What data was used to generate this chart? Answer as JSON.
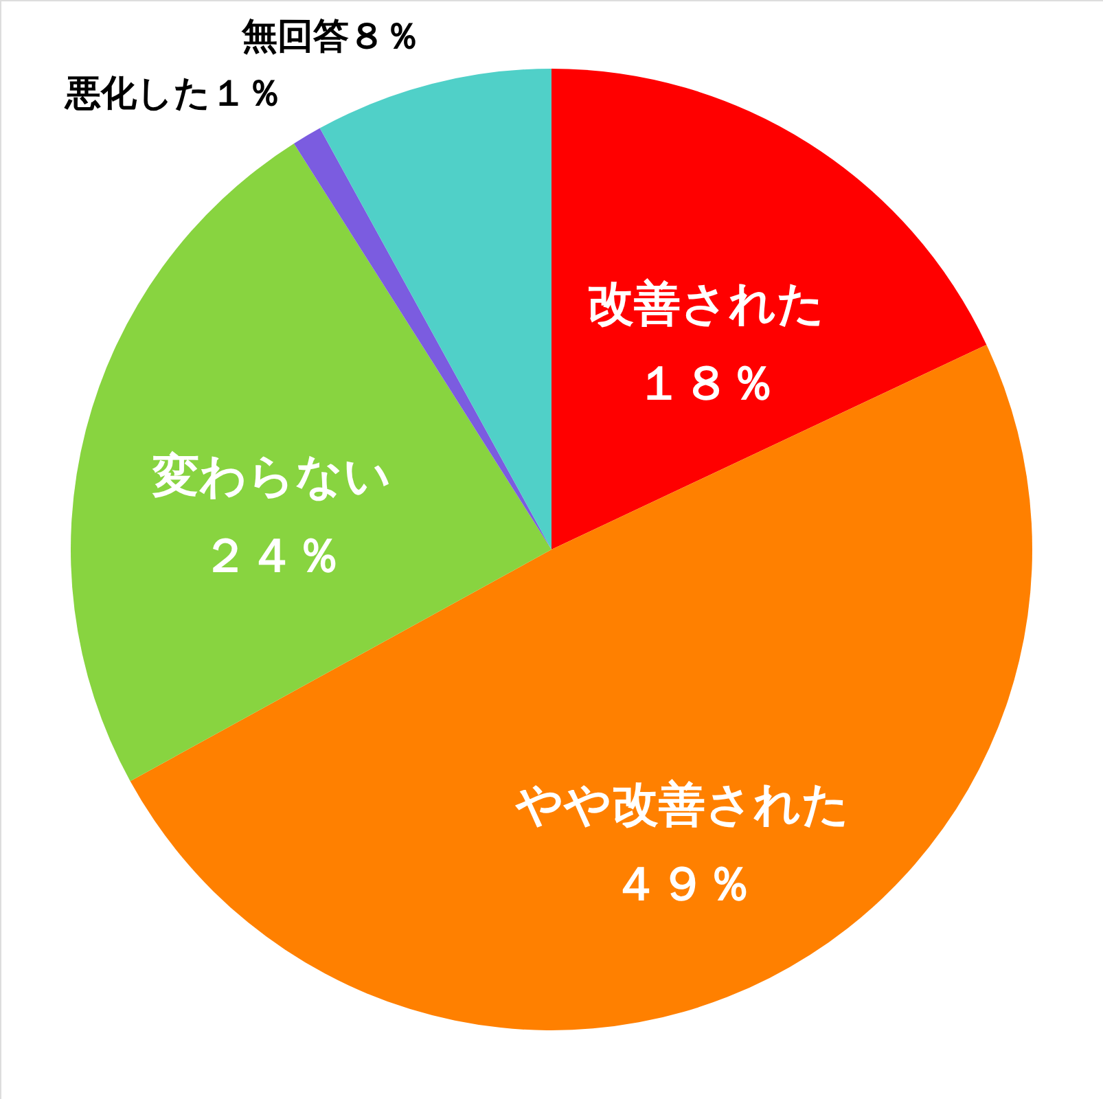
{
  "chart_data": {
    "type": "pie",
    "categories": [
      "改善された",
      "やや改善された",
      "変わらない",
      "悪化した",
      "無回答"
    ],
    "values": [
      18,
      49,
      24,
      1,
      8
    ],
    "value_labels": [
      "１８％",
      "４９％",
      "２４％",
      "１％",
      "８％"
    ],
    "colors": [
      "#ff0000",
      "#ff8000",
      "#88d440",
      "#7b5ce0",
      "#50d0c8"
    ]
  }
}
